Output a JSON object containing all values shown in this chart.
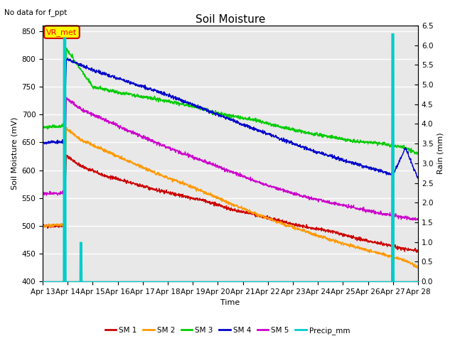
{
  "title": "Soil Moisture",
  "subtitle": "No data for f_ppt",
  "xlabel": "Time",
  "ylabel_left": "Soil Moisture (mV)",
  "ylabel_right": "Rain (mm)",
  "ylim_left": [
    400,
    860
  ],
  "ylim_right": [
    0.0,
    6.5
  ],
  "yticks_left": [
    400,
    450,
    500,
    550,
    600,
    650,
    700,
    750,
    800,
    850
  ],
  "yticks_right": [
    0.0,
    0.5,
    1.0,
    1.5,
    2.0,
    2.5,
    3.0,
    3.5,
    4.0,
    4.5,
    5.0,
    5.5,
    6.0,
    6.5
  ],
  "background_color": "#e8e8e8",
  "annotation_box": "VR_met",
  "annotation_box_color": "#ffff00",
  "annotation_box_border": "#cc0000",
  "colors": {
    "SM1": "#cc0000",
    "SM2": "#ff9900",
    "SM3": "#00cc00",
    "SM4": "#0000cc",
    "SM5": "#cc00cc",
    "Precip": "#00cccc"
  },
  "figsize": [
    6.4,
    4.8
  ],
  "dpi": 100
}
